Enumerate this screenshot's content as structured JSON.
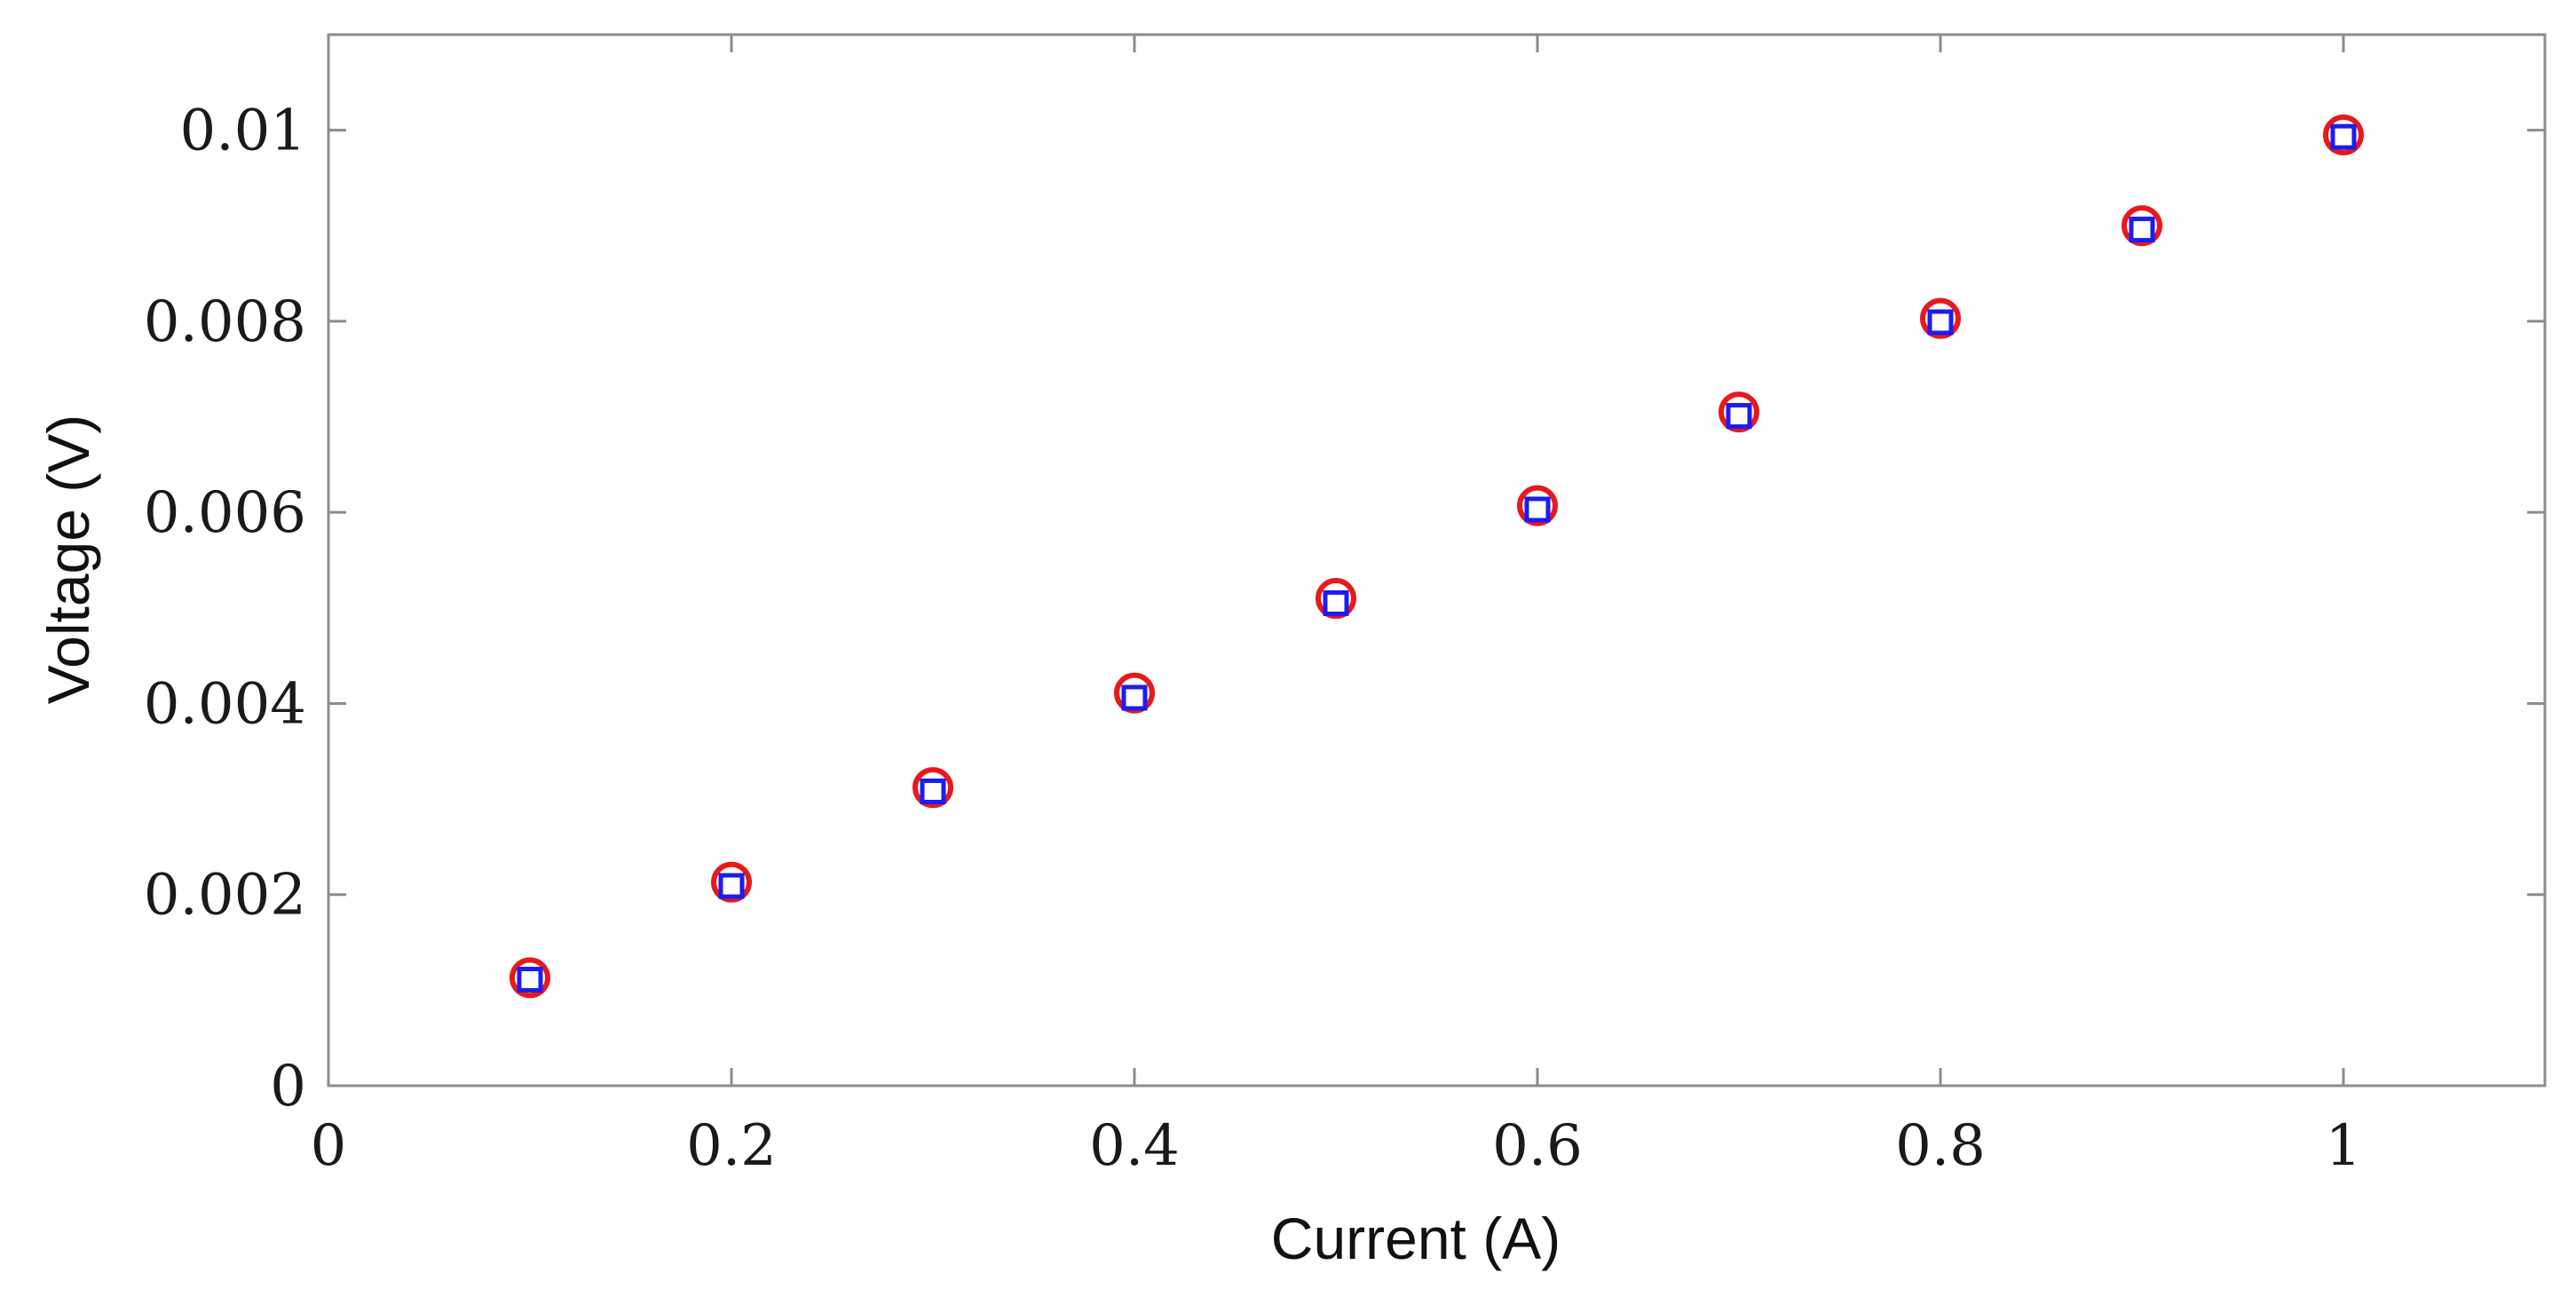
{
  "chart_data": {
    "type": "scatter",
    "title": "",
    "xlabel": "Current (A)",
    "ylabel": "Voltage (V)",
    "xlim": [
      0,
      1.1
    ],
    "ylim": [
      0,
      0.011
    ],
    "xticks": [
      0,
      0.2,
      0.4,
      0.6,
      0.8,
      1
    ],
    "xtick_labels": [
      "0",
      "0.2",
      "0.4",
      "0.6",
      "0.8",
      "1"
    ],
    "yticks": [
      0,
      0.002,
      0.004,
      0.006,
      0.008,
      0.01
    ],
    "ytick_labels": [
      "0",
      "0.002",
      "0.004",
      "0.006",
      "0.008",
      "0.01"
    ],
    "grid": false,
    "legend": "none",
    "series": [
      {
        "marker": "circle",
        "color": "#e8191b",
        "x": [
          0.1,
          0.2,
          0.3,
          0.4,
          0.5,
          0.6,
          0.7,
          0.8,
          0.9,
          1.0
        ],
        "y": [
          0.00113,
          0.00213,
          0.00312,
          0.00411,
          0.0051,
          0.00607,
          0.00705,
          0.00803,
          0.009,
          0.00995
        ]
      },
      {
        "marker": "square",
        "color": "#1c1cf0",
        "x": [
          0.1,
          0.2,
          0.3,
          0.4,
          0.5,
          0.6,
          0.7,
          0.8,
          0.9,
          1.0
        ],
        "y": [
          0.00111,
          0.00209,
          0.00308,
          0.00406,
          0.00505,
          0.00603,
          0.00701,
          0.00799,
          0.00896,
          0.00993
        ]
      }
    ]
  }
}
